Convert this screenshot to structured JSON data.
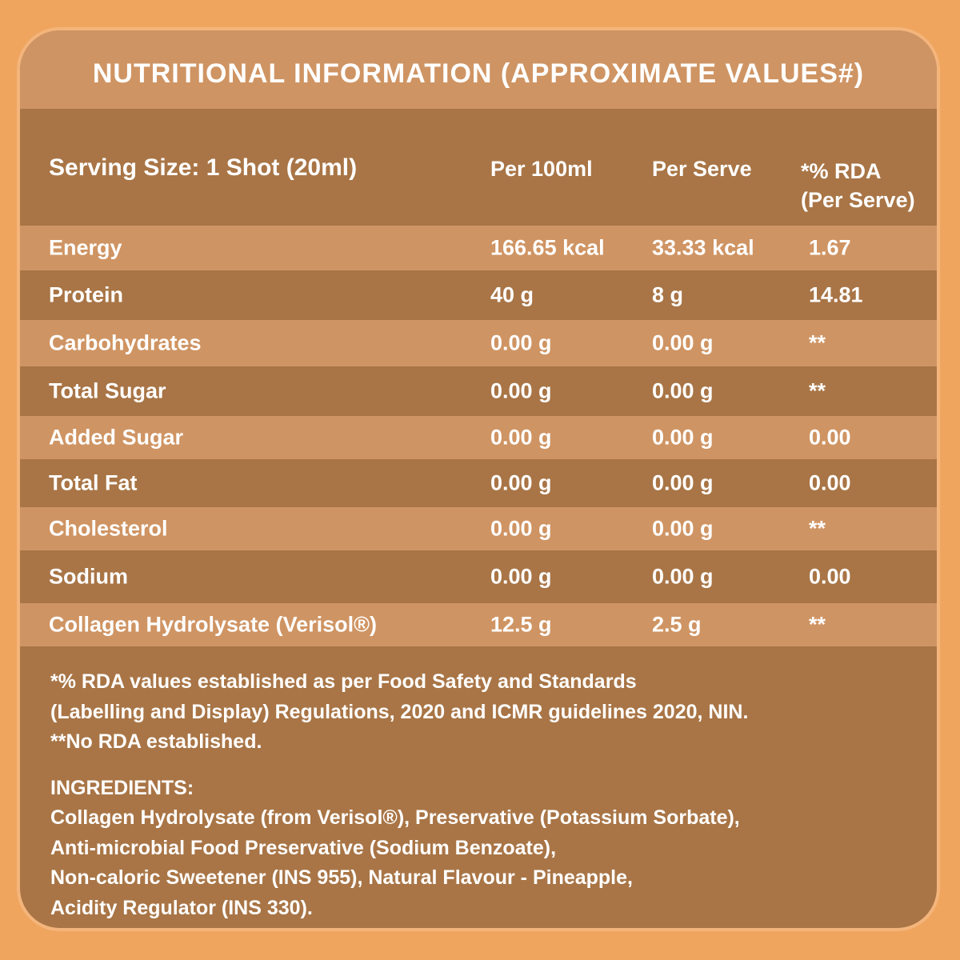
{
  "title": "NUTRITIONAL INFORMATION (APPROXIMATE VALUES#)",
  "table": {
    "serving_size": "Serving Size: 1 Shot (20ml)",
    "headers": {
      "per_100ml": "Per 100ml",
      "per_serve": "Per Serve",
      "rda_line1": "*% RDA",
      "rda_line2": "(Per Serve)"
    },
    "rows": [
      {
        "nutrient": "Energy",
        "per_100ml": "166.65 kcal",
        "per_serve": "33.33 kcal",
        "rda": "1.67"
      },
      {
        "nutrient": "Protein",
        "per_100ml": "40 g",
        "per_serve": "8 g",
        "rda": "14.81"
      },
      {
        "nutrient": "Carbohydrates",
        "per_100ml": "0.00 g",
        "per_serve": "0.00 g",
        "rda": "**"
      },
      {
        "nutrient": "Total Sugar",
        "per_100ml": "0.00 g",
        "per_serve": "0.00 g",
        "rda": "**"
      },
      {
        "nutrient": "Added Sugar",
        "per_100ml": "0.00 g",
        "per_serve": "0.00 g",
        "rda": "0.00"
      },
      {
        "nutrient": "Total Fat",
        "per_100ml": "0.00 g",
        "per_serve": "0.00 g",
        "rda": "0.00"
      },
      {
        "nutrient": "Cholesterol",
        "per_100ml": "0.00 g",
        "per_serve": "0.00 g",
        "rda": "**"
      },
      {
        "nutrient": "Sodium",
        "per_100ml": "0.00 g",
        "per_serve": "0.00 g",
        "rda": "0.00"
      },
      {
        "nutrient": "Collagen Hydrolysate (Verisol®)",
        "per_100ml": "12.5 g",
        "per_serve": "2.5 g",
        "rda": "**"
      }
    ]
  },
  "notes": [
    "*% RDA values established as per Food Safety and Standards",
    "(Labelling and Display) Regulations, 2020 and ICMR guidelines 2020, NIN.",
    "**No RDA established."
  ],
  "ingredients": {
    "heading": "INGREDIENTS:",
    "lines": [
      "Collagen Hydrolysate (from Verisol®), Preservative (Potassium Sorbate),",
      "Anti-microbial Food Preservative (Sodium Benzoate),",
      "Non-caloric Sweetener (INS 955), Natural Flavour - Pineapple,",
      "Acidity Regulator (INS 330)."
    ]
  },
  "colors": {
    "page_background": "#F0A55F",
    "card_border": "#F4B57C",
    "dark_band": "#A97546",
    "light_band": "#CF9463",
    "text": "#FFFFFF"
  }
}
